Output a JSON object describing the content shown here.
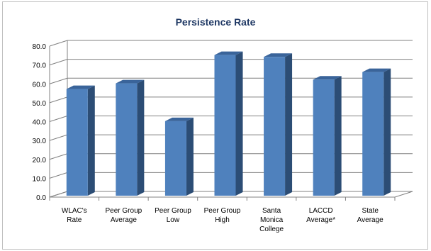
{
  "chart_data": {
    "type": "bar",
    "title": "Persistence Rate",
    "categories": [
      "WLAC's Rate",
      "Peer Group Average",
      "Peer Group Low",
      "Peer Group High",
      "Santa Monica College",
      "LACCD Average*",
      "State Average"
    ],
    "category_lines": [
      [
        "WLAC's",
        "Rate"
      ],
      [
        "Peer Group",
        "Average"
      ],
      [
        "Peer Group",
        "Low"
      ],
      [
        "Peer Group",
        "High"
      ],
      [
        "Santa",
        "Monica",
        "College"
      ],
      [
        "LACCD",
        "Average*"
      ],
      [
        "State",
        "Average"
      ]
    ],
    "values": [
      56.5,
      59.5,
      39.5,
      74.5,
      73.5,
      61.5,
      65.5
    ],
    "ylim": [
      0,
      80
    ],
    "yticks": [
      "0.0",
      "10.0",
      "20.0",
      "30.0",
      "40.0",
      "50.0",
      "60.0",
      "70.0",
      "80.0"
    ],
    "grid": true,
    "colors": {
      "title": "#1f3864",
      "bar_front": "#4f81bd",
      "bar_side": "#2c4d75",
      "bar_top": "#3a649a",
      "grid": "#808080",
      "wall_edge": "#808080"
    }
  }
}
